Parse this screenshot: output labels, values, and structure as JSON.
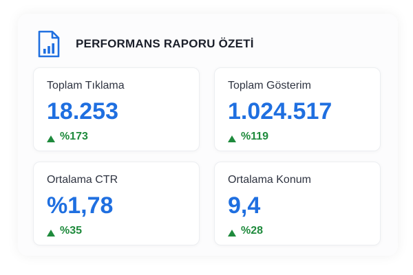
{
  "header": {
    "title": "PERFORMANS RAPORU ÖZETİ",
    "icon": "report-chart-icon"
  },
  "colors": {
    "accent": "#1f6fe0",
    "positive": "#1e8a3c",
    "text": "#1b1f2a"
  },
  "metrics": [
    {
      "label": "Toplam Tıklama",
      "value": "18.253",
      "change": "%173",
      "trend": "up"
    },
    {
      "label": "Toplam Gösterim",
      "value": "1.024.517",
      "change": "%119",
      "trend": "up"
    },
    {
      "label": "Ortalama CTR",
      "value": "%1,78",
      "change": "%35",
      "trend": "up"
    },
    {
      "label": "Ortalama Konum",
      "value": "9,4",
      "change": "%28",
      "trend": "up"
    }
  ]
}
